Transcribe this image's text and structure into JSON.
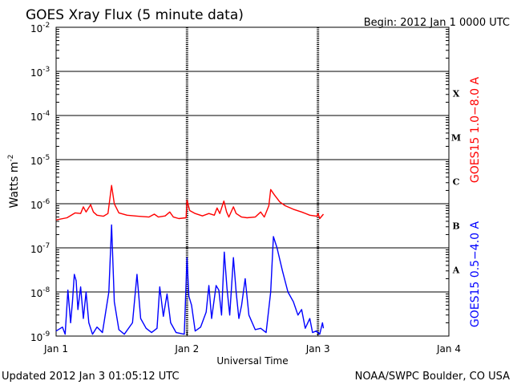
{
  "header": {
    "title": "GOES Xray Flux (5 minute data)",
    "begin": "Begin:  2012 Jan 1 0000 UTC"
  },
  "footer": {
    "updated": "Updated 2012 Jan  3 01:05:12 UTC",
    "source": "NOAA/SWPC Boulder, CO USA"
  },
  "chart_data": {
    "type": "line",
    "title": "GOES Xray Flux (5 minute data)",
    "xlabel": "Universal Time",
    "ylabel": "Watts m",
    "ylabel_sup": "-2",
    "y_scale": "log",
    "ylim": [
      1e-09,
      0.01
    ],
    "xlim": [
      "2012-01-01 00:00",
      "2012-01-04 00:00"
    ],
    "x_ticks": [
      "Jan 1",
      "Jan 2",
      "Jan 3",
      "Jan 4"
    ],
    "y_ticks": [
      {
        "base": "10",
        "exp": "-9"
      },
      {
        "base": "10",
        "exp": "-8"
      },
      {
        "base": "10",
        "exp": "-7"
      },
      {
        "base": "10",
        "exp": "-6"
      },
      {
        "base": "10",
        "exp": "-5"
      },
      {
        "base": "10",
        "exp": "-4"
      },
      {
        "base": "10",
        "exp": "-3"
      },
      {
        "base": "10",
        "exp": "-2"
      }
    ],
    "flare_classes": [
      {
        "label": "A",
        "band_low": 1e-08,
        "band_high": 1e-07
      },
      {
        "label": "B",
        "band_low": 1e-07,
        "band_high": 1e-06
      },
      {
        "label": "C",
        "band_low": 1e-06,
        "band_high": 1e-05
      },
      {
        "label": "M",
        "band_low": 1e-05,
        "band_high": 0.0001
      },
      {
        "label": "X",
        "band_low": 0.0001,
        "band_high": 0.001
      }
    ],
    "grid": true,
    "series": [
      {
        "name": "GOES15 1.0−8.0 A",
        "color": "#ff0000",
        "points": [
          [
            "2012-01-01 00:00",
            4.3e-07
          ],
          [
            "2012-01-01 02:00",
            4.8e-07
          ],
          [
            "2012-01-01 03:30",
            6.2e-07
          ],
          [
            "2012-01-01 04:30",
            6e-07
          ],
          [
            "2012-01-01 05:00",
            8.5e-07
          ],
          [
            "2012-01-01 05:30",
            6.5e-07
          ],
          [
            "2012-01-01 06:20",
            9.5e-07
          ],
          [
            "2012-01-01 06:50",
            6.5e-07
          ],
          [
            "2012-01-01 07:30",
            5.5e-07
          ],
          [
            "2012-01-01 08:40",
            5.2e-07
          ],
          [
            "2012-01-01 09:30",
            6e-07
          ],
          [
            "2012-01-01 10:10",
            2.6e-06
          ],
          [
            "2012-01-01 10:40",
            1e-06
          ],
          [
            "2012-01-01 11:30",
            6.2e-07
          ],
          [
            "2012-01-01 13:00",
            5.5e-07
          ],
          [
            "2012-01-01 15:00",
            5.2e-07
          ],
          [
            "2012-01-01 17:00",
            5e-07
          ],
          [
            "2012-01-01 18:00",
            5.8e-07
          ],
          [
            "2012-01-01 18:45",
            5e-07
          ],
          [
            "2012-01-01 20:00",
            5.3e-07
          ],
          [
            "2012-01-01 20:50",
            6.5e-07
          ],
          [
            "2012-01-01 21:30",
            5e-07
          ],
          [
            "2012-01-01 22:30",
            4.6e-07
          ],
          [
            "2012-01-01 23:50",
            4.8e-07
          ],
          [
            "2012-01-02 00:00",
            1.2e-06
          ],
          [
            "2012-01-02 00:30",
            7e-07
          ],
          [
            "2012-01-02 01:30",
            6e-07
          ],
          [
            "2012-01-02 02:50",
            5.3e-07
          ],
          [
            "2012-01-02 04:00",
            6e-07
          ],
          [
            "2012-01-02 05:00",
            5.5e-07
          ],
          [
            "2012-01-02 05:30",
            8e-07
          ],
          [
            "2012-01-02 06:00",
            6e-07
          ],
          [
            "2012-01-02 06:45",
            1.15e-06
          ],
          [
            "2012-01-02 07:15",
            6.5e-07
          ],
          [
            "2012-01-02 07:40",
            5e-07
          ],
          [
            "2012-01-02 08:30",
            8.5e-07
          ],
          [
            "2012-01-02 09:00",
            6e-07
          ],
          [
            "2012-01-02 10:00",
            5e-07
          ],
          [
            "2012-01-02 11:00",
            4.8e-07
          ],
          [
            "2012-01-02 12:30",
            5e-07
          ],
          [
            "2012-01-02 13:30",
            6.5e-07
          ],
          [
            "2012-01-02 14:10",
            5e-07
          ],
          [
            "2012-01-02 15:00",
            9e-07
          ],
          [
            "2012-01-02 15:20",
            2.1e-06
          ],
          [
            "2012-01-02 16:00",
            1.6e-06
          ],
          [
            "2012-01-02 17:00",
            1.1e-06
          ],
          [
            "2012-01-02 18:00",
            9e-07
          ],
          [
            "2012-01-02 19:30",
            7.5e-07
          ],
          [
            "2012-01-02 21:00",
            6.5e-07
          ],
          [
            "2012-01-02 22:30",
            5.5e-07
          ],
          [
            "2012-01-02 23:50",
            5.2e-07
          ],
          [
            "2012-01-03 00:00",
            6e-07
          ],
          [
            "2012-01-03 00:20",
            4.6e-07
          ],
          [
            "2012-01-03 01:00",
            5.8e-07
          ]
        ]
      },
      {
        "name": "GOES15 0.5−4.0 A",
        "color": "#0000ff",
        "points": [
          [
            "2012-01-01 00:00",
            1.3e-09
          ],
          [
            "2012-01-01 01:10",
            1.6e-09
          ],
          [
            "2012-01-01 01:40",
            1.1e-09
          ],
          [
            "2012-01-01 02:10",
            1.1e-08
          ],
          [
            "2012-01-01 02:40",
            2e-09
          ],
          [
            "2012-01-01 03:00",
            6e-09
          ],
          [
            "2012-01-01 03:20",
            2.5e-08
          ],
          [
            "2012-01-01 03:40",
            1.8e-08
          ],
          [
            "2012-01-01 04:00",
            4e-09
          ],
          [
            "2012-01-01 04:30",
            1.3e-08
          ],
          [
            "2012-01-01 05:00",
            2.5e-09
          ],
          [
            "2012-01-01 05:30",
            1e-08
          ],
          [
            "2012-01-01 06:00",
            2e-09
          ],
          [
            "2012-01-01 06:40",
            1.1e-09
          ],
          [
            "2012-01-01 07:30",
            1.6e-09
          ],
          [
            "2012-01-01 08:30",
            1.2e-09
          ],
          [
            "2012-01-01 09:40",
            1e-08
          ],
          [
            "2012-01-01 10:10",
            3.3e-07
          ],
          [
            "2012-01-01 10:40",
            6e-09
          ],
          [
            "2012-01-01 11:30",
            1.4e-09
          ],
          [
            "2012-01-01 12:30",
            1.1e-09
          ],
          [
            "2012-01-01 14:00",
            2e-09
          ],
          [
            "2012-01-01 14:50",
            2.5e-08
          ],
          [
            "2012-01-01 15:30",
            2.5e-09
          ],
          [
            "2012-01-01 16:30",
            1.5e-09
          ],
          [
            "2012-01-01 17:30",
            1.2e-09
          ],
          [
            "2012-01-01 18:30",
            1.5e-09
          ],
          [
            "2012-01-01 19:00",
            1.3e-08
          ],
          [
            "2012-01-01 19:40",
            2.8e-09
          ],
          [
            "2012-01-01 20:20",
            9e-09
          ],
          [
            "2012-01-01 21:00",
            2e-09
          ],
          [
            "2012-01-01 22:00",
            1.2e-09
          ],
          [
            "2012-01-01 23:30",
            1.1e-09
          ],
          [
            "2012-01-02 00:00",
            6e-08
          ],
          [
            "2012-01-02 00:20",
            8e-09
          ],
          [
            "2012-01-02 00:50",
            5e-09
          ],
          [
            "2012-01-02 01:30",
            1.3e-09
          ],
          [
            "2012-01-02 02:30",
            1.6e-09
          ],
          [
            "2012-01-02 03:30",
            3.5e-09
          ],
          [
            "2012-01-02 04:00",
            1.4e-08
          ],
          [
            "2012-01-02 04:30",
            2.5e-09
          ],
          [
            "2012-01-02 05:20",
            1.4e-08
          ],
          [
            "2012-01-02 05:50",
            1.1e-08
          ],
          [
            "2012-01-02 06:20",
            3e-09
          ],
          [
            "2012-01-02 06:50",
            8e-08
          ],
          [
            "2012-01-02 07:20",
            1.2e-08
          ],
          [
            "2012-01-02 07:50",
            3e-09
          ],
          [
            "2012-01-02 08:30",
            6e-08
          ],
          [
            "2012-01-02 09:00",
            1e-08
          ],
          [
            "2012-01-02 09:30",
            2.5e-09
          ],
          [
            "2012-01-02 10:00",
            5e-09
          ],
          [
            "2012-01-02 10:40",
            2e-08
          ],
          [
            "2012-01-02 11:20",
            3e-09
          ],
          [
            "2012-01-02 12:30",
            1.4e-09
          ],
          [
            "2012-01-02 13:30",
            1.5e-09
          ],
          [
            "2012-01-02 14:30",
            1.2e-09
          ],
          [
            "2012-01-02 15:20",
            1e-08
          ],
          [
            "2012-01-02 15:50",
            1.8e-07
          ],
          [
            "2012-01-02 16:30",
            1e-07
          ],
          [
            "2012-01-02 17:30",
            3e-08
          ],
          [
            "2012-01-02 18:30",
            1e-08
          ],
          [
            "2012-01-02 19:30",
            6e-09
          ],
          [
            "2012-01-02 20:20",
            3e-09
          ],
          [
            "2012-01-02 21:00",
            4e-09
          ],
          [
            "2012-01-02 21:40",
            1.5e-09
          ],
          [
            "2012-01-02 22:30",
            2.5e-09
          ],
          [
            "2012-01-02 23:00",
            1.2e-09
          ],
          [
            "2012-01-02 23:40",
            1.3e-09
          ],
          [
            "2012-01-03 00:20",
            1.1e-09
          ],
          [
            "2012-01-03 00:50",
            2e-09
          ],
          [
            "2012-01-03 01:00",
            1.5e-09
          ]
        ]
      }
    ]
  }
}
